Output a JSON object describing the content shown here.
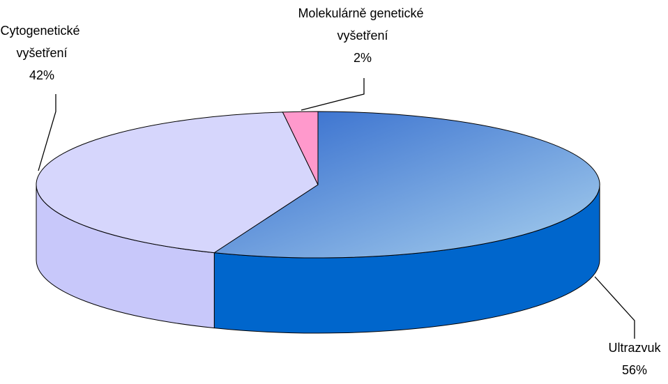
{
  "chart_data": {
    "type": "pie",
    "categories": [
      "Ultrazvuk",
      "Cytogenetické vyšetření",
      "Molekulárně genetické vyšetření"
    ],
    "values": [
      56,
      42,
      2
    ],
    "value_labels": [
      "56%",
      "42%",
      "2%"
    ],
    "colors": [
      "#0066cc",
      "#d6d6fc",
      "#ff99cc"
    ]
  }
}
